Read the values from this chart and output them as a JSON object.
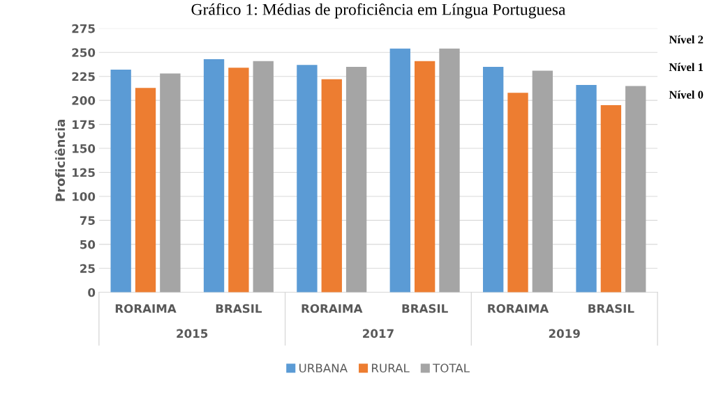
{
  "chart_data": {
    "type": "bar",
    "title": "Gráfico 1: Médias de proficiência em Língua Portuguesa",
    "ylabel": "Proficiência",
    "categories": [
      "RORAIMA",
      "BRASIL",
      "RORAIMA",
      "BRASIL",
      "RORAIMA",
      "BRASIL"
    ],
    "series": [
      {
        "name": "URBANA",
        "color": "#5b9bd5",
        "values": [
          232,
          243,
          237,
          254,
          235,
          216
        ]
      },
      {
        "name": "RURAL",
        "color": "#ed7d31",
        "values": [
          213,
          234,
          222,
          241,
          208,
          195
        ]
      },
      {
        "name": "TOTAL",
        "color": "#a5a5a5",
        "values": [
          228,
          241,
          235,
          254,
          231,
          215
        ]
      }
    ],
    "annotations": [
      "2015",
      "2017",
      "2019",
      "Nível 2",
      "Nível 1",
      "Nível 0"
    ],
    "ylim": [
      0,
      275
    ],
    "yticks": [
      0,
      25,
      50,
      75,
      100,
      125,
      150,
      175,
      200,
      225,
      250,
      275
    ],
    "grid": "y",
    "legend": "bottom"
  }
}
